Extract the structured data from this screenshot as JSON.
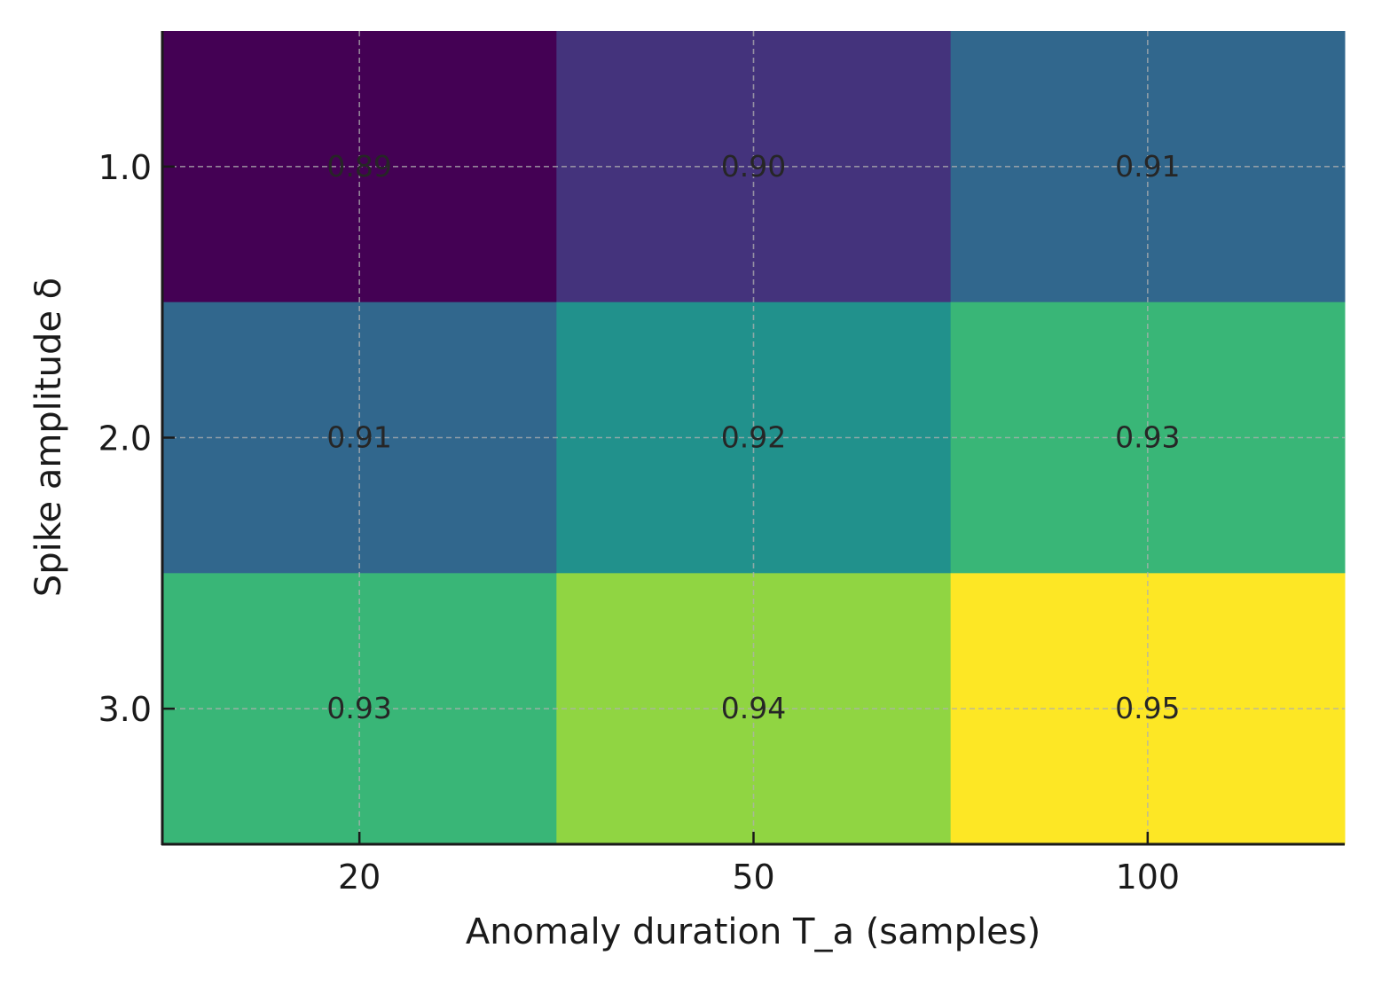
{
  "chart_data": {
    "type": "heatmap",
    "title": "",
    "xlabel": "Anomaly duration T_a (samples)",
    "ylabel": "Spike amplitude δ",
    "x_categories": [
      "20",
      "50",
      "100"
    ],
    "y_categories": [
      "1.0",
      "2.0",
      "3.0"
    ],
    "values": [
      [
        0.89,
        0.9,
        0.91
      ],
      [
        0.91,
        0.92,
        0.93
      ],
      [
        0.93,
        0.94,
        0.95
      ]
    ],
    "value_labels": [
      [
        "0.89",
        "0.90",
        "0.91"
      ],
      [
        "0.91",
        "0.92",
        "0.93"
      ],
      [
        "0.93",
        "0.94",
        "0.95"
      ]
    ],
    "colormap": "viridis",
    "color_range": [
      0.89,
      0.95
    ],
    "grid": true
  },
  "colors": {
    "text": "#1a1a1a",
    "cell_text": "#262626",
    "grid": "#b0b0b0"
  }
}
